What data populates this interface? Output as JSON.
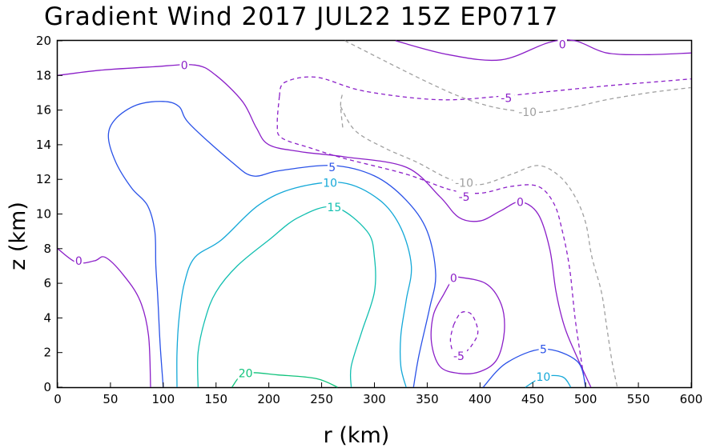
{
  "chart_data": {
    "type": "contour",
    "title": "Gradient Wind 2017 JUL22 15Z  EP0717",
    "xlabel": "r (km)",
    "ylabel": "z (km)",
    "xlim": [
      0,
      600
    ],
    "ylim": [
      0,
      20
    ],
    "xticks": [
      "0",
      "50",
      "100",
      "150",
      "200",
      "250",
      "300",
      "350",
      "400",
      "450",
      "500",
      "550",
      "600"
    ],
    "yticks": [
      "0",
      "2",
      "4",
      "6",
      "8",
      "10",
      "12",
      "14",
      "16",
      "18",
      "20"
    ],
    "contours": [
      {
        "level": -10,
        "color": "#a0a0a0",
        "style": "dashed",
        "labels": [
          {
            "text": "-10",
            "r": 445,
            "z": 15.9
          },
          {
            "text": "-10",
            "r": 385,
            "z": 11.8
          }
        ],
        "paths": [
          [
            [
              272,
              20.0
            ],
            [
              380,
              16.8
            ],
            [
              442,
              15.9
            ],
            [
              482,
              16.1
            ],
            [
              520,
              16.6
            ],
            [
              560,
              17.0
            ],
            [
              600,
              17.3
            ]
          ],
          [
            [
              270,
              15.0
            ],
            [
              268,
              16.3
            ],
            [
              270,
              17.0
            ]
          ],
          [
            [
              268,
              16.2
            ],
            [
              282,
              14.8
            ],
            [
              310,
              13.8
            ],
            [
              340,
              13.0
            ],
            [
              372,
              12.0
            ],
            [
              400,
              11.7
            ],
            [
              430,
              12.3
            ],
            [
              455,
              12.8
            ],
            [
              475,
              12.2
            ],
            [
              490,
              11.0
            ],
            [
              500,
              9.5
            ],
            [
              506,
              7.5
            ],
            [
              515,
              5.5
            ],
            [
              520,
              3.5
            ],
            [
              525,
              1.5
            ],
            [
              530,
              0.0
            ]
          ]
        ]
      },
      {
        "level": -5,
        "color": "#8b1fc8",
        "style": "dashed",
        "labels": [
          {
            "text": "-5",
            "r": 425,
            "z": 16.7
          },
          {
            "text": "-5",
            "r": 385,
            "z": 11.0
          },
          {
            "text": "-5",
            "r": 380,
            "z": 1.8
          }
        ],
        "paths": [
          [
            [
              210,
              16.8
            ],
            [
              215,
              17.6
            ],
            [
              245,
              17.9
            ],
            [
              290,
              17.1
            ],
            [
              360,
              16.6
            ],
            [
              420,
              16.8
            ],
            [
              470,
              17.1
            ],
            [
              520,
              17.4
            ],
            [
              560,
              17.6
            ],
            [
              600,
              17.8
            ]
          ],
          [
            [
              210,
              16.8
            ],
            [
              208,
              15.2
            ],
            [
              212,
              14.4
            ],
            [
              240,
              13.8
            ],
            [
              272,
              13.2
            ],
            [
              330,
              12.3
            ],
            [
              372,
              11.4
            ],
            [
              400,
              11.2
            ],
            [
              430,
              11.6
            ],
            [
              455,
              11.6
            ],
            [
              470,
              10.6
            ],
            [
              478,
              9.0
            ],
            [
              485,
              6.8
            ],
            [
              490,
              4.0
            ],
            [
              496,
              1.5
            ],
            [
              500,
              0.0
            ]
          ],
          [
            [
              375,
              3.6
            ],
            [
              382,
              4.3
            ],
            [
              392,
              4.2
            ],
            [
              398,
              3.2
            ],
            [
              392,
              2.4
            ],
            [
              385,
              2.0
            ],
            [
              376,
              1.9
            ],
            [
              372,
              2.7
            ],
            [
              375,
              3.6
            ]
          ]
        ]
      },
      {
        "level": 0,
        "color": "#8b1fc8",
        "style": "solid",
        "labels": [
          {
            "text": "0",
            "r": 120,
            "z": 18.6
          },
          {
            "text": "0",
            "r": 478,
            "z": 19.8
          },
          {
            "text": "0",
            "r": 438,
            "z": 10.7
          },
          {
            "text": "0",
            "r": 375,
            "z": 6.3
          },
          {
            "text": "0",
            "r": 20,
            "z": 7.3
          }
        ],
        "paths": [
          [
            [
              0,
              18.0
            ],
            [
              40,
              18.3
            ],
            [
              90,
              18.5
            ],
            [
              130,
              18.6
            ],
            [
              150,
              18.0
            ],
            [
              175,
              16.5
            ],
            [
              188,
              15.0
            ],
            [
              200,
              14.0
            ],
            [
              230,
              13.6
            ],
            [
              272,
              13.3
            ],
            [
              330,
              12.7
            ],
            [
              362,
              11.0
            ],
            [
              380,
              9.8
            ],
            [
              400,
              9.6
            ],
            [
              420,
              10.2
            ],
            [
              438,
              10.7
            ],
            [
              455,
              10.0
            ],
            [
              466,
              8.0
            ],
            [
              472,
              5.5
            ],
            [
              480,
              3.5
            ],
            [
              490,
              2.0
            ],
            [
              505,
              0.0
            ]
          ],
          [
            [
              320,
              20.0
            ],
            [
              370,
              19.2
            ],
            [
              420,
              18.9
            ],
            [
              465,
              19.9
            ],
            [
              490,
              20.0
            ],
            [
              520,
              19.3
            ],
            [
              560,
              19.2
            ],
            [
              600,
              19.3
            ]
          ],
          [
            [
              0,
              8.0
            ],
            [
              18,
              7.2
            ],
            [
              35,
              7.3
            ],
            [
              45,
              7.5
            ],
            [
              62,
              6.5
            ],
            [
              78,
              5.0
            ],
            [
              86,
              3.0
            ],
            [
              88,
              0.0
            ]
          ],
          [
            [
              375,
              6.4
            ],
            [
              405,
              6.0
            ],
            [
              420,
              4.8
            ],
            [
              423,
              3.2
            ],
            [
              416,
              1.6
            ],
            [
              400,
              0.9
            ],
            [
              380,
              0.8
            ],
            [
              362,
              1.2
            ],
            [
              354,
              2.6
            ],
            [
              356,
              4.2
            ],
            [
              366,
              5.4
            ],
            [
              375,
              6.4
            ]
          ]
        ]
      },
      {
        "level": 5,
        "color": "#2a52e8",
        "style": "solid",
        "labels": [
          {
            "text": "5",
            "r": 260,
            "z": 12.7
          },
          {
            "text": "5",
            "r": 460,
            "z": 2.2
          }
        ],
        "paths": [
          [
            [
              100,
              0.0
            ],
            [
              97,
              2.5
            ],
            [
              95,
              5.0
            ],
            [
              93,
              7.0
            ],
            [
              92,
              9.0
            ],
            [
              85,
              10.5
            ],
            [
              70,
              11.5
            ],
            [
              55,
              13.0
            ],
            [
              48,
              14.5
            ],
            [
              55,
              15.5
            ],
            [
              75,
              16.3
            ],
            [
              100,
              16.5
            ],
            [
              115,
              16.2
            ],
            [
              125,
              15.2
            ],
            [
              165,
              13.0
            ],
            [
              185,
              12.2
            ],
            [
              210,
              12.5
            ],
            [
              260,
              12.8
            ],
            [
              300,
              12.2
            ],
            [
              330,
              10.8
            ],
            [
              350,
              9.0
            ],
            [
              358,
              6.5
            ],
            [
              352,
              4.5
            ],
            [
              342,
              1.8
            ],
            [
              337,
              0.0
            ]
          ],
          [
            [
              403,
              0.0
            ],
            [
              425,
              1.4
            ],
            [
              460,
              2.2
            ],
            [
              492,
              1.5
            ],
            [
              500,
              0.0
            ]
          ]
        ]
      },
      {
        "level": 10,
        "color": "#14a8d8",
        "style": "solid",
        "labels": [
          {
            "text": "10",
            "r": 258,
            "z": 11.8
          },
          {
            "text": "10",
            "r": 460,
            "z": 0.6
          }
        ],
        "paths": [
          [
            [
              113,
              0.0
            ],
            [
              113,
              2.0
            ],
            [
              115,
              4.0
            ],
            [
              120,
              6.0
            ],
            [
              130,
              7.5
            ],
            [
              155,
              8.5
            ],
            [
              190,
              10.5
            ],
            [
              225,
              11.5
            ],
            [
              270,
              11.8
            ],
            [
              305,
              10.8
            ],
            [
              325,
              9.2
            ],
            [
              335,
              7.0
            ],
            [
              330,
              5.0
            ],
            [
              325,
              3.0
            ],
            [
              325,
              1.2
            ],
            [
              330,
              0.0
            ]
          ],
          [
            [
              443,
              0.0
            ],
            [
              460,
              0.6
            ],
            [
              478,
              0.6
            ],
            [
              486,
              0.0
            ]
          ]
        ]
      },
      {
        "level": 15,
        "color": "#12bfb0",
        "style": "solid",
        "labels": [
          {
            "text": "15",
            "r": 262,
            "z": 10.4
          }
        ],
        "paths": [
          [
            [
              133,
              0.0
            ],
            [
              133,
              2.0
            ],
            [
              140,
              4.0
            ],
            [
              150,
              5.5
            ],
            [
              170,
              7.0
            ],
            [
              200,
              8.5
            ],
            [
              228,
              9.8
            ],
            [
              262,
              10.4
            ],
            [
              293,
              9.0
            ],
            [
              300,
              7.5
            ],
            [
              300,
              5.5
            ],
            [
              288,
              3.2
            ],
            [
              278,
              1.2
            ],
            [
              278,
              0.0
            ]
          ]
        ]
      },
      {
        "level": 20,
        "color": "#10c37c",
        "style": "solid",
        "labels": [
          {
            "text": "20",
            "r": 178,
            "z": 0.8
          }
        ],
        "paths": [
          [
            [
              165,
              0.0
            ],
            [
              178,
              0.8
            ],
            [
              210,
              0.7
            ],
            [
              245,
              0.5
            ],
            [
              265,
              0.0
            ]
          ]
        ]
      }
    ]
  }
}
